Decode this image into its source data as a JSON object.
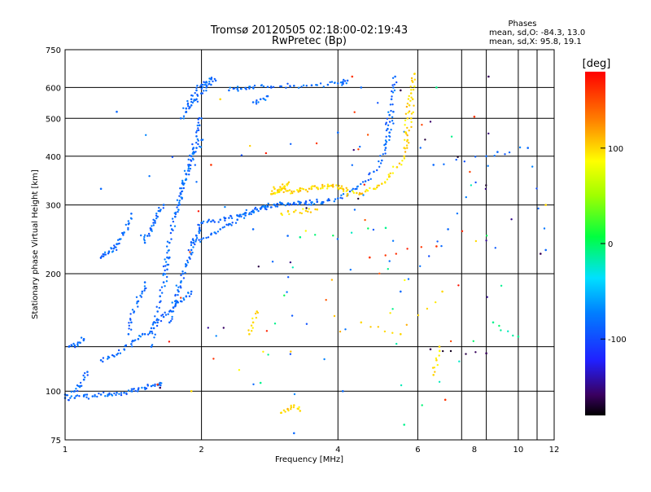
{
  "chart_data": {
    "type": "scatter",
    "title": "Tromsø 20120505 02:18:00-02:19:43",
    "subtitle": "RwPretec (Bp)",
    "xlabel": "Frequency [MHz]",
    "ylabel": "Stationary phase Virtual Height [km]",
    "x_scale": "log",
    "y_scale": "log",
    "xlim": [
      1,
      12
    ],
    "ylim": [
      75,
      750
    ],
    "x_ticks": [
      1,
      2,
      4,
      6,
      8,
      10,
      12
    ],
    "y_ticks": [
      75,
      100,
      200,
      300,
      400,
      500,
      600,
      750
    ],
    "x_grid": [
      1,
      2,
      4,
      6,
      7.5,
      8.5,
      10,
      11,
      12
    ],
    "y_grid": [
      100,
      130,
      200,
      300,
      400,
      500,
      600,
      750
    ],
    "grid": true,
    "stats": {
      "header": "Phases",
      "line1": "mean, sd,O: -84.3, 13.0",
      "line2": "mean, sd,X:  95.8, 19.1"
    },
    "colorbar": {
      "label": "[deg]",
      "range": [
        -180,
        180
      ],
      "ticks": [
        "100",
        "0",
        "-100"
      ],
      "tick_values": [
        100,
        0,
        -100
      ],
      "colormap": "rainbow"
    },
    "series": [
      {
        "phase_deg": -84,
        "traces": [
          {
            "x": [
              1.0,
              1.05,
              1.1,
              1.15,
              1.2,
              1.25,
              1.3,
              1.35,
              1.4,
              1.45,
              1.5,
              1.55,
              1.6,
              1.62
            ],
            "y": [
              96,
              96,
              97,
              97,
              98,
              98,
              99,
              99,
              100,
              101,
              102,
              103,
              104,
              105
            ]
          },
          {
            "x": [
              1.0,
              1.05,
              1.08,
              1.1,
              1.12
            ],
            "y": [
              98,
              100,
              103,
              107,
              112
            ]
          },
          {
            "x": [
              1.02,
              1.05,
              1.08,
              1.1
            ],
            "y": [
              130,
              131,
              133,
              136
            ]
          },
          {
            "x": [
              1.2,
              1.25,
              1.3,
              1.35,
              1.4,
              1.45,
              1.5,
              1.55,
              1.6,
              1.65,
              1.7,
              1.75,
              1.8,
              1.85,
              1.9
            ],
            "y": [
              120,
              122,
              124,
              128,
              132,
              136,
              140,
              145,
              150,
              155,
              160,
              165,
              170,
              175,
              180
            ]
          },
          {
            "x": [
              1.2,
              1.22,
              1.25,
              1.28,
              1.3,
              1.32,
              1.35,
              1.38,
              1.4
            ],
            "y": [
              220,
              224,
              228,
              232,
              238,
              245,
              255,
              268,
              285
            ]
          },
          {
            "x": [
              1.38,
              1.4,
              1.42,
              1.45,
              1.48,
              1.5
            ],
            "y": [
              140,
              150,
              160,
              170,
              180,
              190
            ]
          },
          {
            "x": [
              1.5,
              1.52,
              1.55,
              1.58,
              1.6,
              1.62,
              1.65
            ],
            "y": [
              240,
              250,
              260,
              270,
              280,
              290,
              300
            ]
          },
          {
            "x": [
              1.55,
              1.57,
              1.6,
              1.62,
              1.65,
              1.68,
              1.7
            ],
            "y": [
              130,
              145,
              160,
              175,
              190,
              205,
              220
            ]
          },
          {
            "x": [
              1.65,
              1.68,
              1.7,
              1.72,
              1.75,
              1.78,
              1.8,
              1.82,
              1.85,
              1.88,
              1.9,
              1.95,
              2.0
            ],
            "y": [
              200,
              220,
              240,
              260,
              280,
              300,
              320,
              340,
              360,
              380,
              400,
              420,
              440
            ]
          },
          {
            "x": [
              1.7,
              1.72,
              1.75,
              1.78,
              1.8,
              1.82,
              1.85,
              1.88,
              1.9,
              1.92,
              1.95,
              1.98,
              2.0
            ],
            "y": [
              150,
              160,
              170,
              180,
              190,
              200,
              210,
              220,
              230,
              240,
              250,
              260,
              270
            ]
          },
          {
            "x": [
              1.75,
              1.78,
              1.8,
              1.82,
              1.85,
              1.88,
              1.9,
              1.92,
              1.95,
              1.98,
              2.0
            ],
            "y": [
              280,
              300,
              320,
              340,
              360,
              380,
              400,
              420,
              450,
              480,
              500
            ]
          },
          {
            "x": [
              1.8,
              1.85,
              1.9,
              1.95,
              2.0,
              2.05,
              2.1,
              2.15
            ],
            "y": [
              500,
              530,
              560,
              590,
              610,
              620,
              630,
              625
            ]
          },
          {
            "x": [
              1.85,
              1.9,
              1.95,
              2.0,
              2.05,
              2.1
            ],
            "y": [
              520,
              540,
              560,
              580,
              600,
              610
            ]
          },
          {
            "x": [
              2.0,
              2.1,
              2.2,
              2.3,
              2.4,
              2.5,
              2.6,
              2.7,
              2.8,
              2.9,
              3.0
            ],
            "y": [
              270,
              272,
              275,
              278,
              282,
              286,
              290,
              294,
              297,
              300,
              302
            ]
          },
          {
            "x": [
              1.9,
              2.0,
              2.1,
              2.2,
              2.3,
              2.4,
              2.5,
              2.6,
              2.7,
              2.8
            ],
            "y": [
              240,
              245,
              252,
              260,
              268,
              275,
              282,
              288,
              294,
              298
            ]
          },
          {
            "x": [
              3.0,
              3.2,
              3.4,
              3.6,
              3.8,
              4.0,
              4.2
            ],
            "y": [
              303,
              304,
              305,
              306,
              308,
              312,
              318
            ]
          },
          {
            "x": [
              2.9,
              3.1,
              3.3,
              3.5,
              3.7
            ],
            "y": [
              300,
              302,
              303,
              304,
              305
            ]
          },
          {
            "x": [
              4.2,
              4.4,
              4.6,
              4.8,
              5.0,
              5.1,
              5.2,
              5.3
            ],
            "y": [
              320,
              330,
              345,
              365,
              390,
              420,
              460,
              520
            ]
          },
          {
            "x": [
              5.1,
              5.15,
              5.2,
              5.25,
              5.3,
              5.35
            ],
            "y": [
              430,
              470,
              510,
              560,
              600,
              640
            ]
          },
          {
            "x": [
              2.3,
              2.4,
              2.5,
              2.6,
              2.8,
              3.0,
              3.2,
              3.5,
              3.8,
              4.0,
              4.1,
              4.2
            ],
            "y": [
              590,
              595,
              598,
              600,
              602,
              604,
              606,
              608,
              610,
              615,
              620,
              625
            ]
          },
          {
            "x": [
              2.6,
              2.7,
              2.8
            ],
            "y": [
              550,
              560,
              570
            ]
          },
          {
            "x": [
              1.3,
              2.6,
              4.1,
              4.5,
              6.5,
              8.5,
              10.5,
              11.5,
              3.1,
              3.2,
              1.2,
              4.0,
              5.5,
              7.0,
              9.0
            ],
            "y": [
              520,
              260,
              100,
              600,
              380,
              400,
              420,
              230,
              250,
              78,
              330,
              460,
              180,
              260,
              410
            ]
          }
        ]
      },
      {
        "phase_deg": 100,
        "traces": [
          {
            "x": [
              2.9,
              3.0,
              3.1,
              3.2,
              3.3,
              3.4,
              3.5,
              3.6,
              3.7,
              3.8,
              3.9,
              4.0,
              4.1,
              4.2
            ],
            "y": [
              330,
              328,
              326,
              325,
              326,
              328,
              330,
              332,
              334,
              335,
              334,
              332,
              330,
              328
            ]
          },
          {
            "x": [
              2.85,
              2.9,
              2.95,
              3.0,
              3.05,
              3.1
            ],
            "y": [
              320,
              322,
              325,
              330,
              335,
              340
            ]
          },
          {
            "x": [
              3.0,
              3.2,
              3.4,
              3.6
            ],
            "y": [
              285,
              288,
              290,
              292
            ]
          },
          {
            "x": [
              4.2,
              4.4,
              4.6,
              4.8,
              5.0,
              5.2,
              5.4,
              5.6,
              5.7,
              5.8,
              5.85
            ],
            "y": [
              320,
              322,
              325,
              330,
              340,
              355,
              375,
              400,
              440,
              500,
              560
            ]
          },
          {
            "x": [
              5.6,
              5.65,
              5.7,
              5.75,
              5.8,
              5.85,
              5.9
            ],
            "y": [
              420,
              460,
              500,
              540,
              580,
              620,
              650
            ]
          },
          {
            "x": [
              2.55,
              2.6,
              2.65
            ],
            "y": [
              140,
              150,
              160
            ]
          },
          {
            "x": [
              3.0,
              3.1,
              3.2,
              3.3
            ],
            "y": [
              88,
              90,
              92,
              89
            ]
          },
          {
            "x": [
              6.5,
              6.6,
              6.7
            ],
            "y": [
              110,
              120,
              130
            ]
          },
          {
            "x": [
              2.2,
              4.5,
              5.5,
              6.8,
              1.9,
              11.5
            ],
            "y": [
              560,
              150,
              140,
              180,
              100,
              300
            ]
          }
        ]
      },
      {
        "phase_deg": -10,
        "traces": [
          {
            "x": [
              2.7,
              3.3,
              5.1,
              5.6,
              8.8,
              10.0,
              6.6
            ],
            "y": [
              105,
              248,
              262,
              82,
              150,
              138,
              600
            ]
          }
        ]
      },
      {
        "phase_deg": 160,
        "traces": [
          {
            "x": [
              4.3,
              4.7,
              6.6,
              1.6,
              2.1,
              8.0,
              6.9
            ],
            "y": [
              640,
              220,
              235,
              104,
              380,
              505,
              95
            ]
          }
        ]
      },
      {
        "phase_deg": -160,
        "traces": [
          {
            "x": [
              6.4,
              8.5,
              8.6,
              1.62,
              5.5,
              11.2
            ],
            "y": [
              128,
              125,
              640,
              102,
              590,
              225
            ]
          }
        ]
      }
    ]
  }
}
